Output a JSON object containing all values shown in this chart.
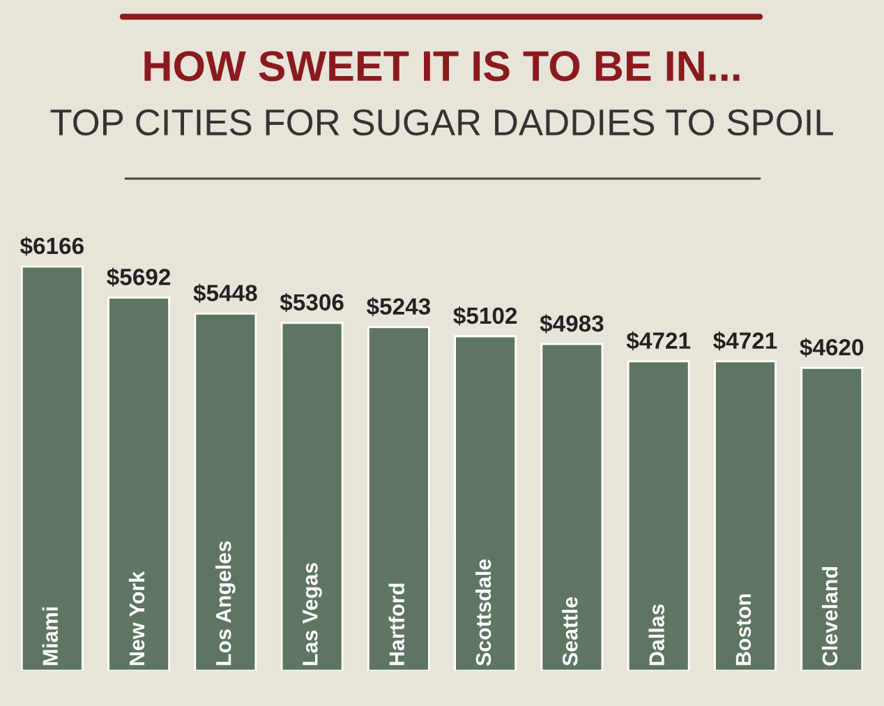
{
  "chart_data": {
    "type": "bar",
    "title": "HOW SWEET IT IS TO BE IN...",
    "subtitle": "TOP CITIES FOR SUGAR DADDIES TO SPOIL",
    "categories": [
      "Miami",
      "New York",
      "Los Angeles",
      "Las Vegas",
      "Hartford",
      "Scottsdale",
      "Seattle",
      "Dallas",
      "Boston",
      "Cleveland"
    ],
    "values": [
      6166,
      5692,
      5448,
      5306,
      5243,
      5102,
      4983,
      4721,
      4721,
      4620
    ],
    "value_labels": [
      "$6166",
      "$5692",
      "$5448",
      "$5306",
      "$5243",
      "$5102",
      "$4983",
      "$4721",
      "$4721",
      "$4620"
    ],
    "color": "#5f7563"
  }
}
